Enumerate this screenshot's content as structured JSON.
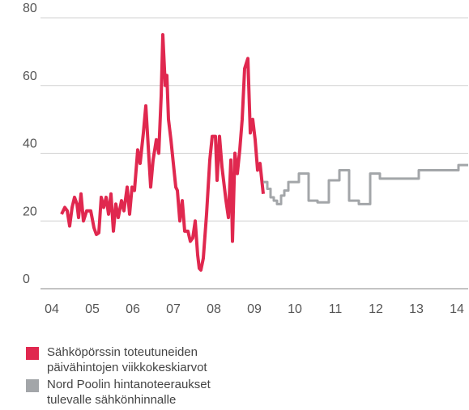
{
  "chart_data": {
    "type": "line",
    "xlim": [
      3.72,
      14.28
    ],
    "xticks": [
      {
        "value": 4,
        "label": "04"
      },
      {
        "value": 5,
        "label": "05"
      },
      {
        "value": 6,
        "label": "06"
      },
      {
        "value": 7,
        "label": "07"
      },
      {
        "value": 8,
        "label": "08"
      },
      {
        "value": 9,
        "label": "09"
      },
      {
        "value": 10,
        "label": "10"
      },
      {
        "value": 11,
        "label": "11"
      },
      {
        "value": 12,
        "label": "12"
      },
      {
        "value": 13,
        "label": "13"
      },
      {
        "value": 14,
        "label": "14"
      }
    ],
    "ylim": [
      0,
      80
    ],
    "yticks": [
      0,
      20,
      40,
      60,
      80
    ],
    "grid": true,
    "series": [
      {
        "name": "Sähköpörssin toteutuneiden päivähintojen viikkokeskiarvot",
        "color": "#e0284f",
        "step": false,
        "x": [
          4.24,
          4.32,
          4.38,
          4.44,
          4.5,
          4.56,
          4.62,
          4.66,
          4.72,
          4.78,
          4.86,
          4.96,
          5.04,
          5.1,
          5.16,
          5.22,
          5.28,
          5.34,
          5.4,
          5.46,
          5.52,
          5.58,
          5.64,
          5.72,
          5.78,
          5.86,
          5.92,
          5.98,
          6.04,
          6.12,
          6.18,
          6.26,
          6.32,
          6.38,
          6.44,
          6.5,
          6.58,
          6.64,
          6.7,
          6.74,
          6.8,
          6.84,
          6.88,
          6.94,
          7.0,
          7.06,
          7.1,
          7.16,
          7.22,
          7.28,
          7.36,
          7.42,
          7.48,
          7.54,
          7.6,
          7.64,
          7.68,
          7.74,
          7.82,
          7.9,
          7.96,
          8.04,
          8.08,
          8.14,
          8.2,
          8.26,
          8.3,
          8.36,
          8.42,
          8.46,
          8.52,
          8.58,
          8.64,
          8.7,
          8.76,
          8.84,
          8.9,
          8.96,
          9.02,
          9.08,
          9.14,
          9.22
        ],
        "values": [
          22,
          24,
          23,
          18.5,
          24,
          27,
          25,
          21,
          28,
          20,
          23,
          23,
          18,
          16,
          16.5,
          27,
          24,
          27,
          22,
          28,
          17,
          25,
          21,
          26,
          23,
          30,
          22,
          30,
          29,
          41,
          37,
          46,
          54,
          42,
          30,
          38,
          44,
          40,
          57,
          75,
          60,
          63,
          50,
          44,
          37,
          30,
          29,
          20,
          26,
          17,
          17,
          14,
          15,
          20,
          10,
          6,
          5.5,
          9,
          22,
          38,
          45,
          45,
          32,
          45,
          36,
          30,
          26,
          21,
          38,
          14,
          40,
          34,
          41,
          50,
          65,
          68,
          46,
          50,
          44,
          35,
          37,
          28
        ]
      },
      {
        "name": "Nord Poolin hintanoteeraukset tulevalle sähkönhinnalle",
        "color": "#a3a6a9",
        "step": true,
        "x": [
          9.22,
          9.32,
          9.4,
          9.48,
          9.56,
          9.66,
          9.74,
          9.84,
          10.1,
          10.34,
          10.56,
          10.84,
          11.1,
          11.34,
          11.58,
          11.86,
          12.1,
          13.06,
          14.04,
          14.28
        ],
        "values": [
          31.5,
          29.5,
          27,
          26,
          25,
          27.5,
          29,
          31.5,
          34,
          26,
          25.5,
          32,
          35,
          26,
          25,
          34,
          32.5,
          35,
          36.5,
          36.5
        ]
      }
    ]
  }
}
